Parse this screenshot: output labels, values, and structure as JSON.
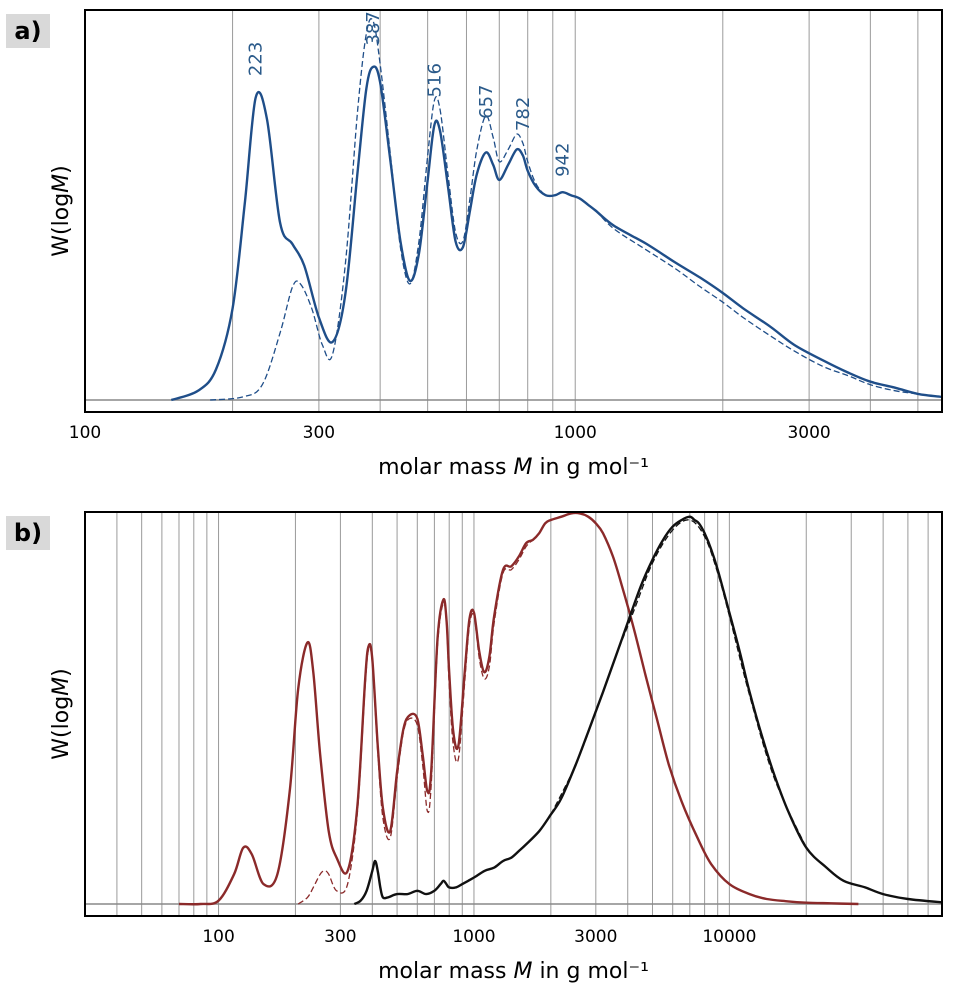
{
  "chart_data": [
    {
      "panel": "a)",
      "type": "line",
      "xlabel": "molar mass M in g mol⁻¹",
      "ylabel": "W(logM)",
      "xscale": "log",
      "xlim": [
        100,
        5600
      ],
      "ylim": [
        0,
        1.25
      ],
      "xticks": [
        100,
        300,
        1000,
        3000
      ],
      "xtick_labels": [
        "100",
        "300",
        "1000",
        "3000"
      ],
      "grid": "vertical",
      "series": [
        {
          "style": "solid",
          "color": "#1f4e89",
          "x": [
            150,
            170,
            185,
            200,
            212,
            223,
            235,
            250,
            265,
            280,
            300,
            320,
            340,
            360,
            375,
            387,
            400,
            420,
            440,
            460,
            480,
            500,
            516,
            530,
            550,
            570,
            590,
            610,
            630,
            657,
            680,
            700,
            730,
            760,
            782,
            800,
            830,
            870,
            910,
            942,
            980,
            1020,
            1060,
            1100,
            1200,
            1400,
            1600,
            1800,
            2000,
            2200,
            2500,
            2800,
            3200,
            3600,
            4000,
            4500,
            5000,
            5600
          ],
          "y": [
            0.0,
            0.03,
            0.1,
            0.3,
            0.65,
            0.99,
            0.92,
            0.58,
            0.51,
            0.44,
            0.27,
            0.19,
            0.35,
            0.75,
            1.02,
            1.09,
            1.04,
            0.78,
            0.52,
            0.39,
            0.48,
            0.72,
            0.9,
            0.88,
            0.7,
            0.52,
            0.5,
            0.62,
            0.74,
            0.81,
            0.77,
            0.72,
            0.77,
            0.82,
            0.8,
            0.75,
            0.7,
            0.67,
            0.67,
            0.68,
            0.67,
            0.66,
            0.64,
            0.62,
            0.57,
            0.51,
            0.45,
            0.4,
            0.35,
            0.3,
            0.24,
            0.18,
            0.13,
            0.09,
            0.06,
            0.04,
            0.02,
            0.01
          ]
        },
        {
          "style": "dashed",
          "color": "#1f4e89",
          "x": [
            180,
            210,
            230,
            250,
            265,
            275,
            290,
            305,
            320,
            340,
            360,
            375,
            387,
            400,
            420,
            440,
            460,
            480,
            500,
            516,
            530,
            550,
            570,
            590,
            610,
            630,
            657,
            680,
            700,
            730,
            760,
            782,
            800,
            830,
            870,
            910,
            942,
            980,
            1020,
            1060,
            1100,
            1200,
            1400,
            1600,
            1800,
            2000,
            2200,
            2500,
            2800,
            3200,
            3600,
            4000,
            4500,
            5000,
            5600
          ],
          "y": [
            0.0,
            0.01,
            0.05,
            0.22,
            0.37,
            0.38,
            0.3,
            0.18,
            0.15,
            0.45,
            0.95,
            1.2,
            1.24,
            1.1,
            0.8,
            0.5,
            0.38,
            0.52,
            0.8,
            0.98,
            0.95,
            0.74,
            0.55,
            0.52,
            0.66,
            0.82,
            0.93,
            0.86,
            0.78,
            0.82,
            0.87,
            0.84,
            0.78,
            0.71,
            0.67,
            0.67,
            0.68,
            0.67,
            0.66,
            0.64,
            0.62,
            0.56,
            0.49,
            0.43,
            0.37,
            0.32,
            0.27,
            0.21,
            0.16,
            0.11,
            0.08,
            0.05,
            0.03,
            0.02,
            0.01
          ]
        }
      ],
      "annotations": [
        {
          "text": "223",
          "x": 223,
          "y": 1.06
        },
        {
          "text": "387",
          "x": 387,
          "y": 1.16
        },
        {
          "text": "516",
          "x": 516,
          "y": 0.99
        },
        {
          "text": "657",
          "x": 657,
          "y": 0.92
        },
        {
          "text": "782",
          "x": 782,
          "y": 0.88
        },
        {
          "text": "942",
          "x": 942,
          "y": 0.73
        }
      ]
    },
    {
      "panel": "b)",
      "type": "line",
      "xlabel": "molar mass M in g mol⁻¹",
      "ylabel": "W(logM)",
      "xscale": "log",
      "xlim": [
        30,
        68000
      ],
      "ylim": [
        0,
        1.16
      ],
      "xticks": [
        100,
        300,
        1000,
        3000,
        10000
      ],
      "xtick_labels": [
        "100",
        "300",
        "1000",
        "3000",
        "10000"
      ],
      "grid": "vertical",
      "series": [
        {
          "style": "solid",
          "color": "#8b2a2a",
          "x": [
            70,
            85,
            100,
            115,
            125,
            135,
            150,
            170,
            190,
            205,
            223,
            235,
            250,
            270,
            290,
            320,
            350,
            375,
            387,
            400,
            420,
            440,
            470,
            500,
            530,
            560,
            600,
            630,
            657,
            680,
            720,
            760,
            782,
            800,
            830,
            870,
            920,
            960,
            1000,
            1050,
            1100,
            1150,
            1200,
            1300,
            1400,
            1500,
            1600,
            1700,
            1800,
            1900,
            2000,
            2200,
            2400,
            2600,
            2800,
            3000,
            3200,
            3500,
            3800,
            4200,
            4700,
            5200,
            5800,
            6500,
            7500,
            8500,
            10000,
            12000,
            14000,
            17000,
            20000,
            25000,
            32000
          ],
          "y": [
            0.0,
            0.0,
            0.01,
            0.09,
            0.17,
            0.15,
            0.06,
            0.09,
            0.34,
            0.65,
            0.79,
            0.7,
            0.45,
            0.22,
            0.14,
            0.1,
            0.3,
            0.68,
            0.78,
            0.74,
            0.48,
            0.29,
            0.22,
            0.4,
            0.53,
            0.57,
            0.56,
            0.45,
            0.34,
            0.4,
            0.8,
            0.92,
            0.85,
            0.7,
            0.52,
            0.48,
            0.7,
            0.86,
            0.88,
            0.76,
            0.7,
            0.75,
            0.87,
            1.01,
            1.02,
            1.05,
            1.09,
            1.1,
            1.12,
            1.15,
            1.16,
            1.17,
            1.18,
            1.18,
            1.17,
            1.15,
            1.12,
            1.05,
            0.96,
            0.84,
            0.69,
            0.56,
            0.42,
            0.31,
            0.2,
            0.12,
            0.06,
            0.03,
            0.015,
            0.008,
            0.004,
            0.002,
            0.0
          ]
        },
        {
          "style": "dashed",
          "color": "#8b2a2a",
          "x": [
            205,
            223,
            235,
            250,
            260,
            270,
            290,
            320,
            350,
            375,
            387,
            400,
            420,
            440,
            470,
            500,
            530,
            560,
            600,
            630,
            657,
            680,
            720,
            760,
            782,
            800,
            830,
            870,
            920,
            960,
            1000,
            1050,
            1100,
            1150,
            1200,
            1300,
            1400,
            1500,
            1600,
            1700,
            1800,
            1900,
            2000,
            2200
          ],
          "y": [
            0.0,
            0.02,
            0.05,
            0.09,
            0.1,
            0.09,
            0.04,
            0.06,
            0.28,
            0.66,
            0.77,
            0.73,
            0.46,
            0.26,
            0.2,
            0.38,
            0.52,
            0.56,
            0.54,
            0.42,
            0.28,
            0.36,
            0.78,
            0.91,
            0.84,
            0.66,
            0.48,
            0.44,
            0.67,
            0.84,
            0.87,
            0.74,
            0.68,
            0.72,
            0.85,
            1.0,
            1.01,
            1.04,
            1.08,
            1.1,
            1.12,
            1.15,
            1.16,
            1.17
          ]
        },
        {
          "style": "solid",
          "color": "#111111",
          "x": [
            340,
            360,
            380,
            400,
            410,
            420,
            430,
            440,
            460,
            500,
            550,
            600,
            650,
            700,
            740,
            760,
            780,
            800,
            850,
            900,
            950,
            1000,
            1100,
            1200,
            1300,
            1400,
            1500,
            1600,
            1800,
            2000,
            2200,
            2500,
            2800,
            3200,
            3600,
            4000,
            4500,
            5000,
            5500,
            6000,
            6500,
            7000,
            7300,
            7600,
            8000,
            8500,
            9000,
            10000,
            11000,
            12000,
            13500,
            15000,
            17000,
            20000,
            24000,
            28000,
            34000,
            40000,
            50000,
            68000
          ],
          "y": [
            0.0,
            0.01,
            0.04,
            0.1,
            0.13,
            0.1,
            0.05,
            0.02,
            0.02,
            0.03,
            0.03,
            0.04,
            0.03,
            0.04,
            0.06,
            0.07,
            0.06,
            0.05,
            0.05,
            0.06,
            0.07,
            0.08,
            0.1,
            0.11,
            0.13,
            0.14,
            0.16,
            0.18,
            0.22,
            0.27,
            0.32,
            0.42,
            0.52,
            0.64,
            0.75,
            0.85,
            0.96,
            1.04,
            1.1,
            1.14,
            1.16,
            1.17,
            1.16,
            1.15,
            1.12,
            1.07,
            1.01,
            0.88,
            0.76,
            0.64,
            0.5,
            0.39,
            0.28,
            0.17,
            0.11,
            0.07,
            0.05,
            0.03,
            0.015,
            0.005
          ]
        },
        {
          "style": "dashed",
          "color": "#111111",
          "x": [
            2000,
            2500,
            3000,
            3600,
            4200,
            5000,
            6000,
            7000,
            8000,
            9000,
            10000,
            12000,
            15000,
            20000
          ],
          "y": [
            0.27,
            0.42,
            0.58,
            0.75,
            0.88,
            1.03,
            1.13,
            1.16,
            1.11,
            1.0,
            0.87,
            0.63,
            0.38,
            0.17
          ]
        }
      ]
    }
  ]
}
